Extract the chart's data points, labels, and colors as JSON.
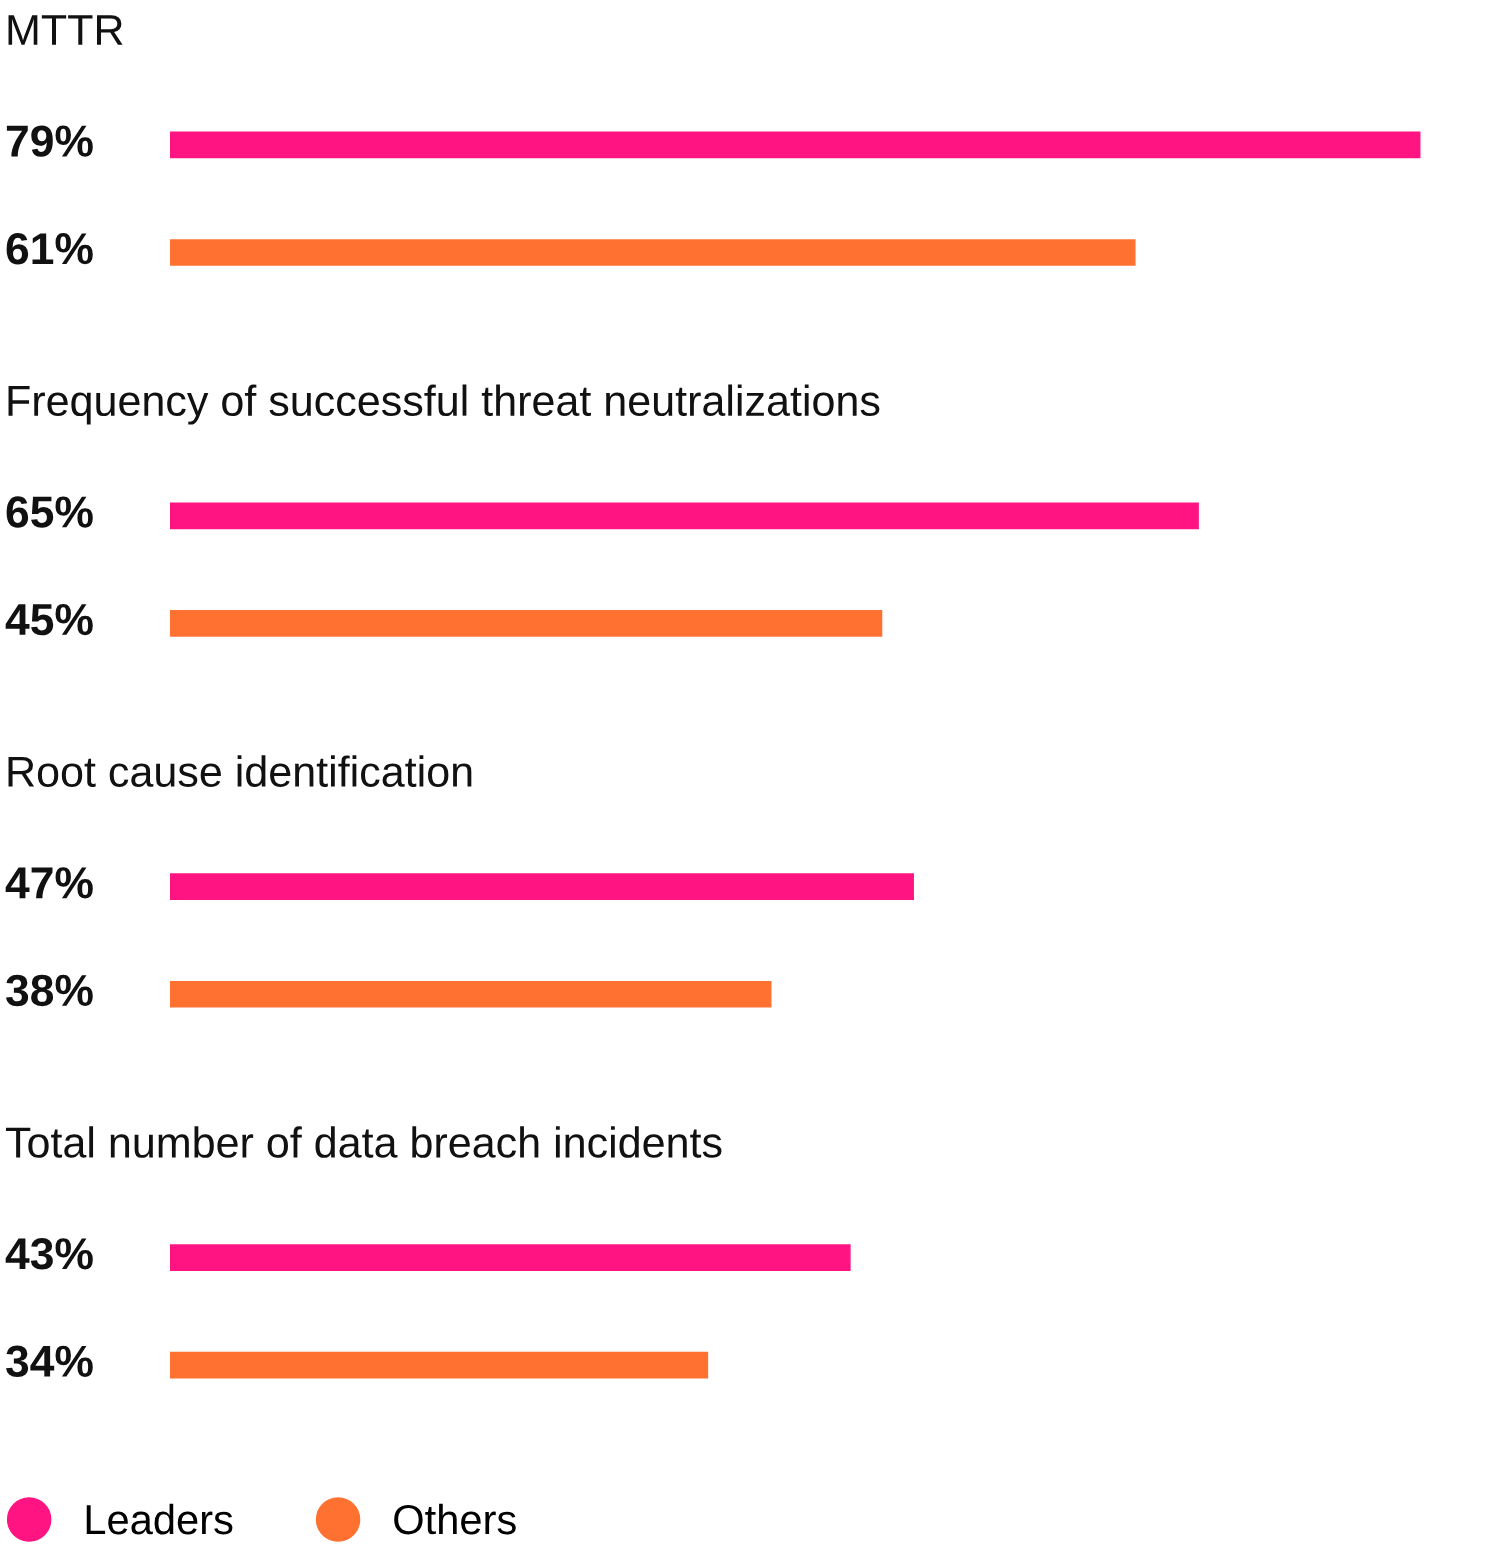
{
  "chart_data": {
    "type": "bar",
    "orientation": "horizontal",
    "categories": [
      "MTTR",
      "Frequency of successful threat neutralizations",
      "Root cause identification",
      "Total number of data breach incidents"
    ],
    "series": [
      {
        "name": "Leaders",
        "color": "#ff1481",
        "values": [
          79,
          65,
          47,
          43
        ],
        "value_labels": [
          "79%",
          "65%",
          "47%",
          "43%"
        ]
      },
      {
        "name": "Others",
        "color": "#ff7131",
        "values": [
          61,
          45,
          38,
          34
        ],
        "value_labels": [
          "61%",
          "45%",
          "38%",
          "34%"
        ]
      }
    ],
    "tick_labels": "y",
    "legend": "bottom"
  }
}
